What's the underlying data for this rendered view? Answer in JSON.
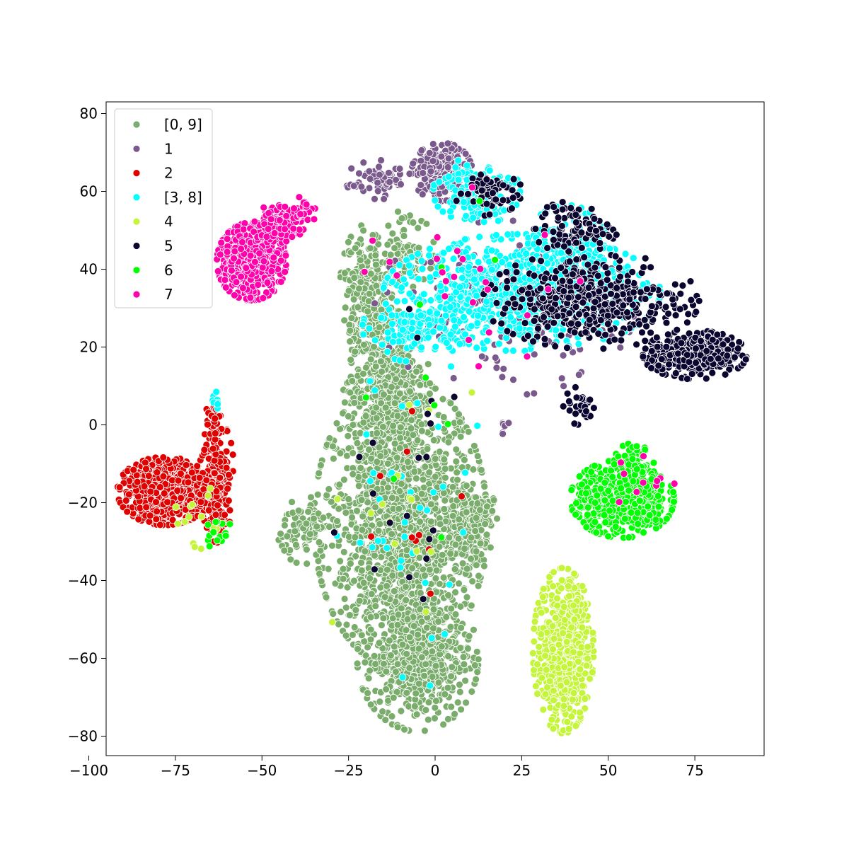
{
  "chart_data": {
    "type": "scatter",
    "title": "",
    "xlabel": "",
    "ylabel": "",
    "xlim": [
      -95,
      95
    ],
    "ylim": [
      -85,
      83
    ],
    "xticks": [
      -100,
      -75,
      -50,
      -25,
      0,
      25,
      50,
      75
    ],
    "xtick_labels": [
      "−100",
      "−75",
      "−50",
      "−25",
      "0",
      "25",
      "50",
      "75"
    ],
    "yticks": [
      -80,
      -60,
      -40,
      -20,
      0,
      20,
      40,
      60,
      80
    ],
    "ytick_labels": [
      "−80",
      "−60",
      "−40",
      "−20",
      "0",
      "20",
      "40",
      "60",
      "80"
    ],
    "grid": false,
    "legend_position": "top-left",
    "marker_edge_color": "#ffffff",
    "series": [
      {
        "name": "[0, 9]",
        "color": "#7aad6c",
        "clusters": [
          {
            "cx": -10,
            "cy": -25,
            "rx": 20,
            "ry": 30,
            "n": 1500
          },
          {
            "cx": -5,
            "cy": -60,
            "rx": 14,
            "ry": 15,
            "n": 550
          },
          {
            "cx": -14,
            "cy": 10,
            "rx": 10,
            "ry": 16,
            "n": 450
          },
          {
            "cx": -20,
            "cy": 34,
            "rx": 6,
            "ry": 14,
            "n": 220
          },
          {
            "cx": -38,
            "cy": -27,
            "rx": 6,
            "ry": 7,
            "n": 80
          },
          {
            "cx": 10,
            "cy": -28,
            "rx": 5,
            "ry": 10,
            "n": 140
          },
          {
            "cx": 14,
            "cy": -22,
            "rx": 4,
            "ry": 3,
            "n": 40
          },
          {
            "cx": -9,
            "cy": 45,
            "rx": 7,
            "ry": 8,
            "n": 90
          }
        ]
      },
      {
        "name": "1",
        "color": "#7a5a8c",
        "clusters": [
          {
            "cx": 2,
            "cy": 65,
            "rx": 7,
            "ry": 6,
            "n": 260
          },
          {
            "cx": -16,
            "cy": 63,
            "rx": 8,
            "ry": 4,
            "n": 70
          },
          {
            "cx": 20,
            "cy": 30,
            "rx": 30,
            "ry": 18,
            "n": 160
          },
          {
            "cx": 20,
            "cy": 0,
            "rx": 1,
            "ry": 2,
            "n": 6
          }
        ]
      },
      {
        "name": "2",
        "color": "#e00000",
        "clusters": [
          {
            "cx": -78,
            "cy": -17,
            "rx": 11,
            "ry": 7,
            "n": 700
          },
          {
            "cx": -63,
            "cy": -14,
            "rx": 4,
            "ry": 13,
            "n": 240
          },
          {
            "cx": -64,
            "cy": 1,
            "rx": 2,
            "ry": 4,
            "n": 40
          },
          {
            "cx": -7,
            "cy": -25,
            "rx": 20,
            "ry": 40,
            "n": 10
          }
        ]
      },
      {
        "name": "[3, 8]",
        "color": "#00ffff",
        "clusters": [
          {
            "cx": 25,
            "cy": 34,
            "rx": 32,
            "ry": 12,
            "n": 800
          },
          {
            "cx": 12,
            "cy": 60,
            "rx": 10,
            "ry": 7,
            "n": 180
          },
          {
            "cx": 38,
            "cy": 44,
            "rx": 10,
            "ry": 10,
            "n": 160
          },
          {
            "cx": -6,
            "cy": 25,
            "rx": 12,
            "ry": 7,
            "n": 120
          },
          {
            "cx": -10,
            "cy": -20,
            "rx": 20,
            "ry": 40,
            "n": 40
          },
          {
            "cx": -63,
            "cy": 6,
            "rx": 1,
            "ry": 2,
            "n": 8
          }
        ]
      },
      {
        "name": "4",
        "color": "#c4f53a",
        "clusters": [
          {
            "cx": 37,
            "cy": -58,
            "rx": 7,
            "ry": 17,
            "n": 600
          },
          {
            "cx": 41,
            "cy": -47,
            "rx": 3,
            "ry": 3,
            "n": 40
          },
          {
            "cx": -10,
            "cy": -20,
            "rx": 20,
            "ry": 40,
            "n": 15
          },
          {
            "cx": -70,
            "cy": -25,
            "rx": 8,
            "ry": 8,
            "n": 15
          }
        ]
      },
      {
        "name": "5",
        "color": "#0a0630",
        "clusters": [
          {
            "cx": 75,
            "cy": 18,
            "rx": 12,
            "ry": 5,
            "n": 360
          },
          {
            "cx": 45,
            "cy": 32,
            "rx": 25,
            "ry": 10,
            "n": 420
          },
          {
            "cx": 40,
            "cy": 50,
            "rx": 10,
            "ry": 6,
            "n": 90
          },
          {
            "cx": 15,
            "cy": 60,
            "rx": 8,
            "ry": 5,
            "n": 60
          },
          {
            "cx": 42,
            "cy": 5,
            "rx": 4,
            "ry": 4,
            "n": 30
          },
          {
            "cx": -10,
            "cy": -20,
            "rx": 20,
            "ry": 40,
            "n": 20
          }
        ]
      },
      {
        "name": "6",
        "color": "#00ff00",
        "clusters": [
          {
            "cx": 54,
            "cy": -19,
            "rx": 12,
            "ry": 8,
            "n": 650
          },
          {
            "cx": 57,
            "cy": -11,
            "rx": 5,
            "ry": 5,
            "n": 120
          },
          {
            "cx": -63,
            "cy": -28,
            "rx": 4,
            "ry": 3,
            "n": 15
          },
          {
            "cx": 5,
            "cy": 10,
            "rx": 20,
            "ry": 40,
            "n": 10
          }
        ]
      },
      {
        "name": "7",
        "color": "#ff00aa",
        "clusters": [
          {
            "cx": -53,
            "cy": 42,
            "rx": 8,
            "ry": 8,
            "n": 650
          },
          {
            "cx": -45,
            "cy": 52,
            "rx": 6,
            "ry": 4,
            "n": 120
          },
          {
            "cx": -38,
            "cy": 55,
            "rx": 3,
            "ry": 3,
            "n": 30
          },
          {
            "cx": 10,
            "cy": 40,
            "rx": 30,
            "ry": 20,
            "n": 25
          },
          {
            "cx": 60,
            "cy": -15,
            "rx": 8,
            "ry": 8,
            "n": 10
          }
        ]
      }
    ]
  }
}
